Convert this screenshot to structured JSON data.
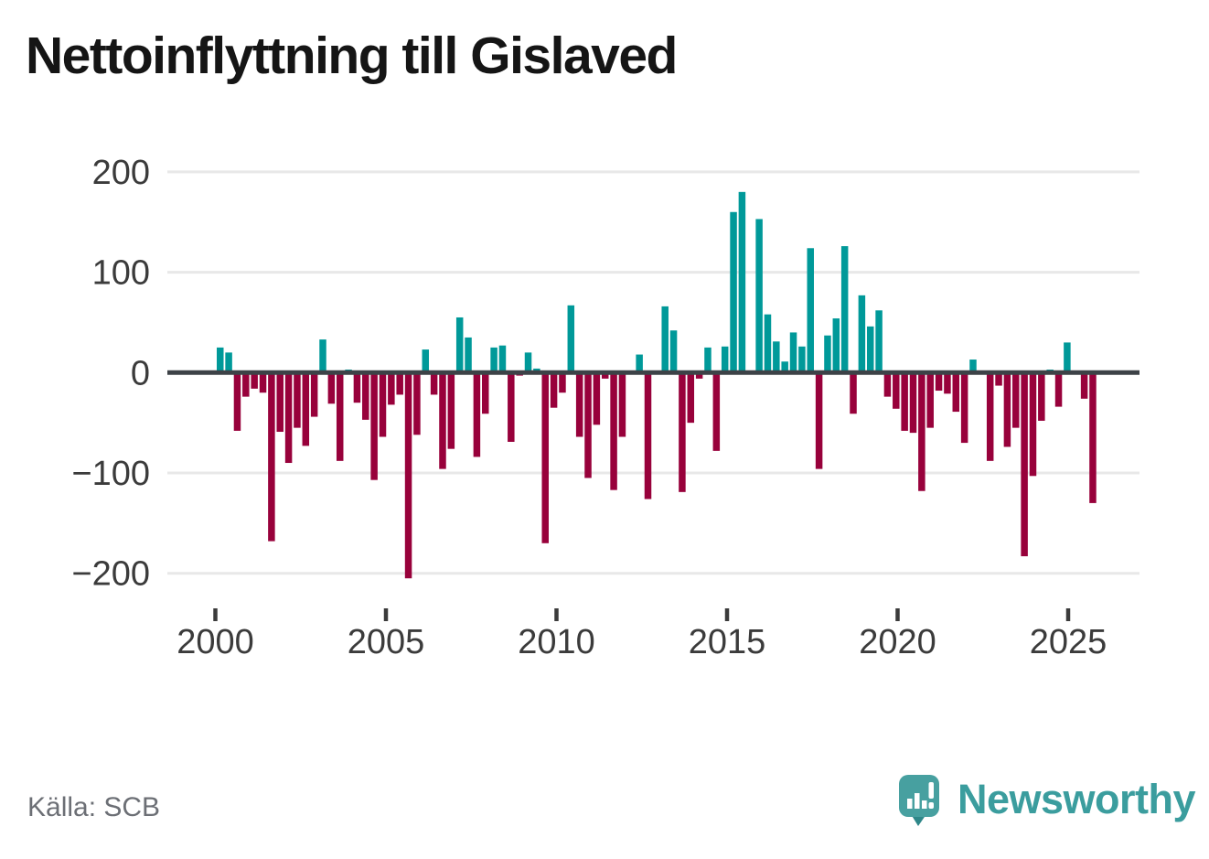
{
  "title": "Nettoinflyttning till Gislaved",
  "source": "Källa: SCB",
  "branding": {
    "logo_text": "Newsworthy",
    "logo_icon": "bar-chart-speech-bubble-icon"
  },
  "colors": {
    "positive_bar": "#009999",
    "negative_bar": "#98013b",
    "zero_line": "#3d4247",
    "gridline": "#e8e8e8",
    "axis_text": "#3b3b3b",
    "title_text": "#151515",
    "source_text": "#6c6f75",
    "brand_teal": "#3b9d9e"
  },
  "chart_data": {
    "type": "bar",
    "title": "Nettoinflyttning till Gislaved",
    "xlabel": "",
    "ylabel": "",
    "frequency": "quarterly",
    "grid": "horizontal",
    "legend": "none",
    "ylim": [
      -220,
      215
    ],
    "y_ticks": [
      200,
      100,
      0,
      -100,
      -200
    ],
    "y_tick_labels": [
      "200",
      "100",
      "0",
      "−100",
      "−200"
    ],
    "x_tick_labels": [
      "2000",
      "2005",
      "2010",
      "2015",
      "2020",
      "2025"
    ],
    "series_by_year": [
      {
        "year": 2000,
        "values": [
          25,
          20,
          -58,
          -24
        ]
      },
      {
        "year": 2001,
        "values": [
          -16,
          -20,
          -168,
          -59
        ]
      },
      {
        "year": 2002,
        "values": [
          -90,
          -55,
          -73,
          -44
        ]
      },
      {
        "year": 2003,
        "values": [
          33,
          -31,
          -88,
          3
        ]
      },
      {
        "year": 2004,
        "values": [
          -30,
          -47,
          -107,
          -64
        ]
      },
      {
        "year": 2005,
        "values": [
          -32,
          -22,
          -205,
          -62
        ]
      },
      {
        "year": 2006,
        "values": [
          23,
          -22,
          -96,
          -76
        ]
      },
      {
        "year": 2007,
        "values": [
          55,
          35,
          -84,
          -41
        ]
      },
      {
        "year": 2008,
        "values": [
          25,
          27,
          -69,
          -3
        ]
      },
      {
        "year": 2009,
        "values": [
          20,
          4,
          -170,
          -35
        ]
      },
      {
        "year": 2010,
        "values": [
          -20,
          67,
          -64,
          -105
        ]
      },
      {
        "year": 2011,
        "values": [
          -52,
          -6,
          -117,
          -64
        ]
      },
      {
        "year": 2012,
        "values": [
          0,
          18,
          -126,
          0
        ]
      },
      {
        "year": 2013,
        "values": [
          66,
          42,
          -119,
          -50
        ]
      },
      {
        "year": 2014,
        "values": [
          -6,
          25,
          -78,
          26
        ]
      },
      {
        "year": 2015,
        "values": [
          160,
          180,
          0,
          153
        ]
      },
      {
        "year": 2016,
        "values": [
          58,
          31,
          11,
          40
        ]
      },
      {
        "year": 2017,
        "values": [
          26,
          124,
          -96,
          37
        ]
      },
      {
        "year": 2018,
        "values": [
          54,
          126,
          -41,
          77
        ]
      },
      {
        "year": 2019,
        "values": [
          46,
          62,
          -24,
          -36
        ]
      },
      {
        "year": 2020,
        "values": [
          -58,
          -60,
          -118,
          -55
        ]
      },
      {
        "year": 2021,
        "values": [
          -18,
          -21,
          -39,
          -70
        ]
      },
      {
        "year": 2022,
        "values": [
          13,
          0,
          -88,
          -13
        ]
      },
      {
        "year": 2023,
        "values": [
          -74,
          -55,
          -183,
          -103
        ]
      },
      {
        "year": 2024,
        "values": [
          -48,
          3,
          -34,
          30
        ]
      },
      {
        "year": 2025,
        "values": [
          0,
          -26,
          -130
        ]
      }
    ]
  }
}
